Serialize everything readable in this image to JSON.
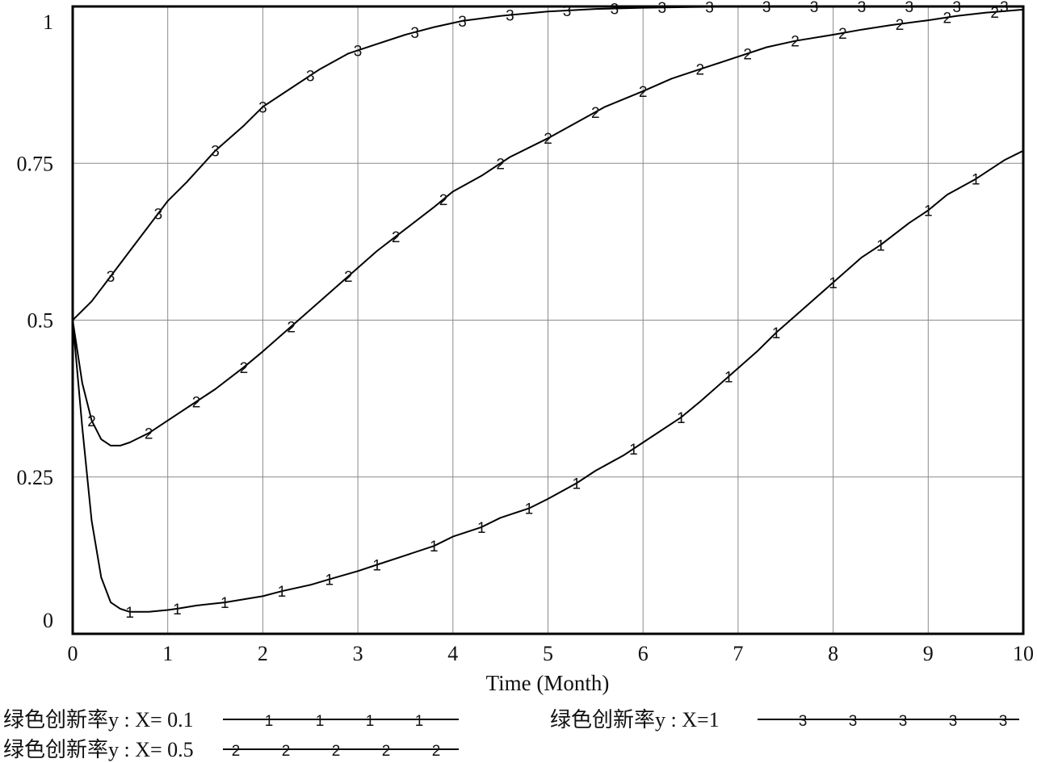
{
  "chart_data": {
    "type": "line",
    "xlabel": "Time (Month)",
    "ylabel": "",
    "xlim": [
      0,
      10
    ],
    "ylim": [
      0,
      1
    ],
    "x_ticks": [
      "0",
      "1",
      "2",
      "3",
      "4",
      "5",
      "6",
      "7",
      "8",
      "9",
      "10"
    ],
    "y_ticks": [
      "0",
      "0.25",
      "0.5",
      "0.75",
      "1"
    ],
    "grid": true,
    "legend_position": "bottom",
    "series": [
      {
        "name": "绿色创新率y : X= 0.1",
        "marker": "1",
        "x": [
          0,
          0.1,
          0.2,
          0.3,
          0.4,
          0.5,
          0.6,
          0.8,
          1.0,
          1.1,
          1.3,
          1.6,
          2.0,
          2.2,
          2.5,
          2.7,
          3.0,
          3.2,
          3.5,
          3.8,
          4.0,
          4.3,
          4.5,
          4.8,
          5.0,
          5.3,
          5.5,
          5.8,
          6.0,
          6.4,
          6.6,
          6.9,
          7.2,
          7.4,
          7.7,
          8.0,
          8.3,
          8.5,
          8.8,
          9.0,
          9.2,
          9.5,
          9.8,
          10.0
        ],
        "y": [
          0.5,
          0.33,
          0.18,
          0.09,
          0.05,
          0.04,
          0.035,
          0.035,
          0.038,
          0.04,
          0.045,
          0.05,
          0.06,
          0.068,
          0.078,
          0.087,
          0.1,
          0.11,
          0.125,
          0.14,
          0.155,
          0.17,
          0.185,
          0.2,
          0.215,
          0.24,
          0.26,
          0.285,
          0.305,
          0.345,
          0.37,
          0.41,
          0.45,
          0.48,
          0.52,
          0.56,
          0.6,
          0.62,
          0.655,
          0.675,
          0.7,
          0.725,
          0.755,
          0.77
        ],
        "marker_x": [
          0.6,
          1.1,
          1.6,
          2.2,
          2.7,
          3.2,
          3.8,
          4.3,
          4.8,
          5.3,
          5.9,
          6.4,
          6.9,
          7.4,
          8.0,
          8.5,
          9.0,
          9.5
        ]
      },
      {
        "name": "绿色创新率y : X= 0.5",
        "marker": "2",
        "x": [
          0,
          0.1,
          0.2,
          0.3,
          0.4,
          0.5,
          0.6,
          0.8,
          1.0,
          1.3,
          1.5,
          1.8,
          2.0,
          2.3,
          2.6,
          2.9,
          3.2,
          3.5,
          3.8,
          4.0,
          4.3,
          4.6,
          5.0,
          5.3,
          5.6,
          6.0,
          6.3,
          6.6,
          7.0,
          7.3,
          7.6,
          8.0,
          8.3,
          8.6,
          9.0,
          9.3,
          9.6,
          10.0
        ],
        "y": [
          0.5,
          0.4,
          0.34,
          0.31,
          0.3,
          0.3,
          0.305,
          0.32,
          0.34,
          0.37,
          0.39,
          0.425,
          0.45,
          0.49,
          0.53,
          0.57,
          0.61,
          0.645,
          0.68,
          0.705,
          0.73,
          0.76,
          0.79,
          0.815,
          0.84,
          0.865,
          0.885,
          0.9,
          0.92,
          0.935,
          0.945,
          0.955,
          0.963,
          0.97,
          0.978,
          0.985,
          0.99,
          0.995
        ],
        "marker_x": [
          0.2,
          0.8,
          1.3,
          1.8,
          2.3,
          2.9,
          3.4,
          3.9,
          4.5,
          5.0,
          5.5,
          6.0,
          6.6,
          7.1,
          7.6,
          8.1,
          8.7,
          9.2,
          9.7
        ]
      },
      {
        "name": "绿色创新率y : X=1",
        "marker": "3",
        "x": [
          0,
          0.2,
          0.4,
          0.6,
          0.8,
          1.0,
          1.2,
          1.5,
          1.8,
          2.0,
          2.3,
          2.6,
          2.9,
          3.2,
          3.5,
          3.8,
          4.1,
          4.5,
          5.0,
          5.5,
          6.0,
          6.5,
          7.0,
          8.0,
          9.0,
          10.0
        ],
        "y": [
          0.5,
          0.53,
          0.57,
          0.61,
          0.65,
          0.69,
          0.72,
          0.77,
          0.81,
          0.84,
          0.87,
          0.9,
          0.925,
          0.94,
          0.955,
          0.967,
          0.977,
          0.985,
          0.992,
          0.996,
          0.998,
          0.999,
          1,
          1,
          1,
          1
        ],
        "marker_x": [
          0.4,
          0.9,
          1.5,
          2.0,
          2.5,
          3.0,
          3.6,
          4.1,
          4.6,
          5.2,
          5.7,
          6.2,
          6.7,
          7.3,
          7.8,
          8.3,
          8.8,
          9.3,
          9.8
        ]
      }
    ]
  }
}
